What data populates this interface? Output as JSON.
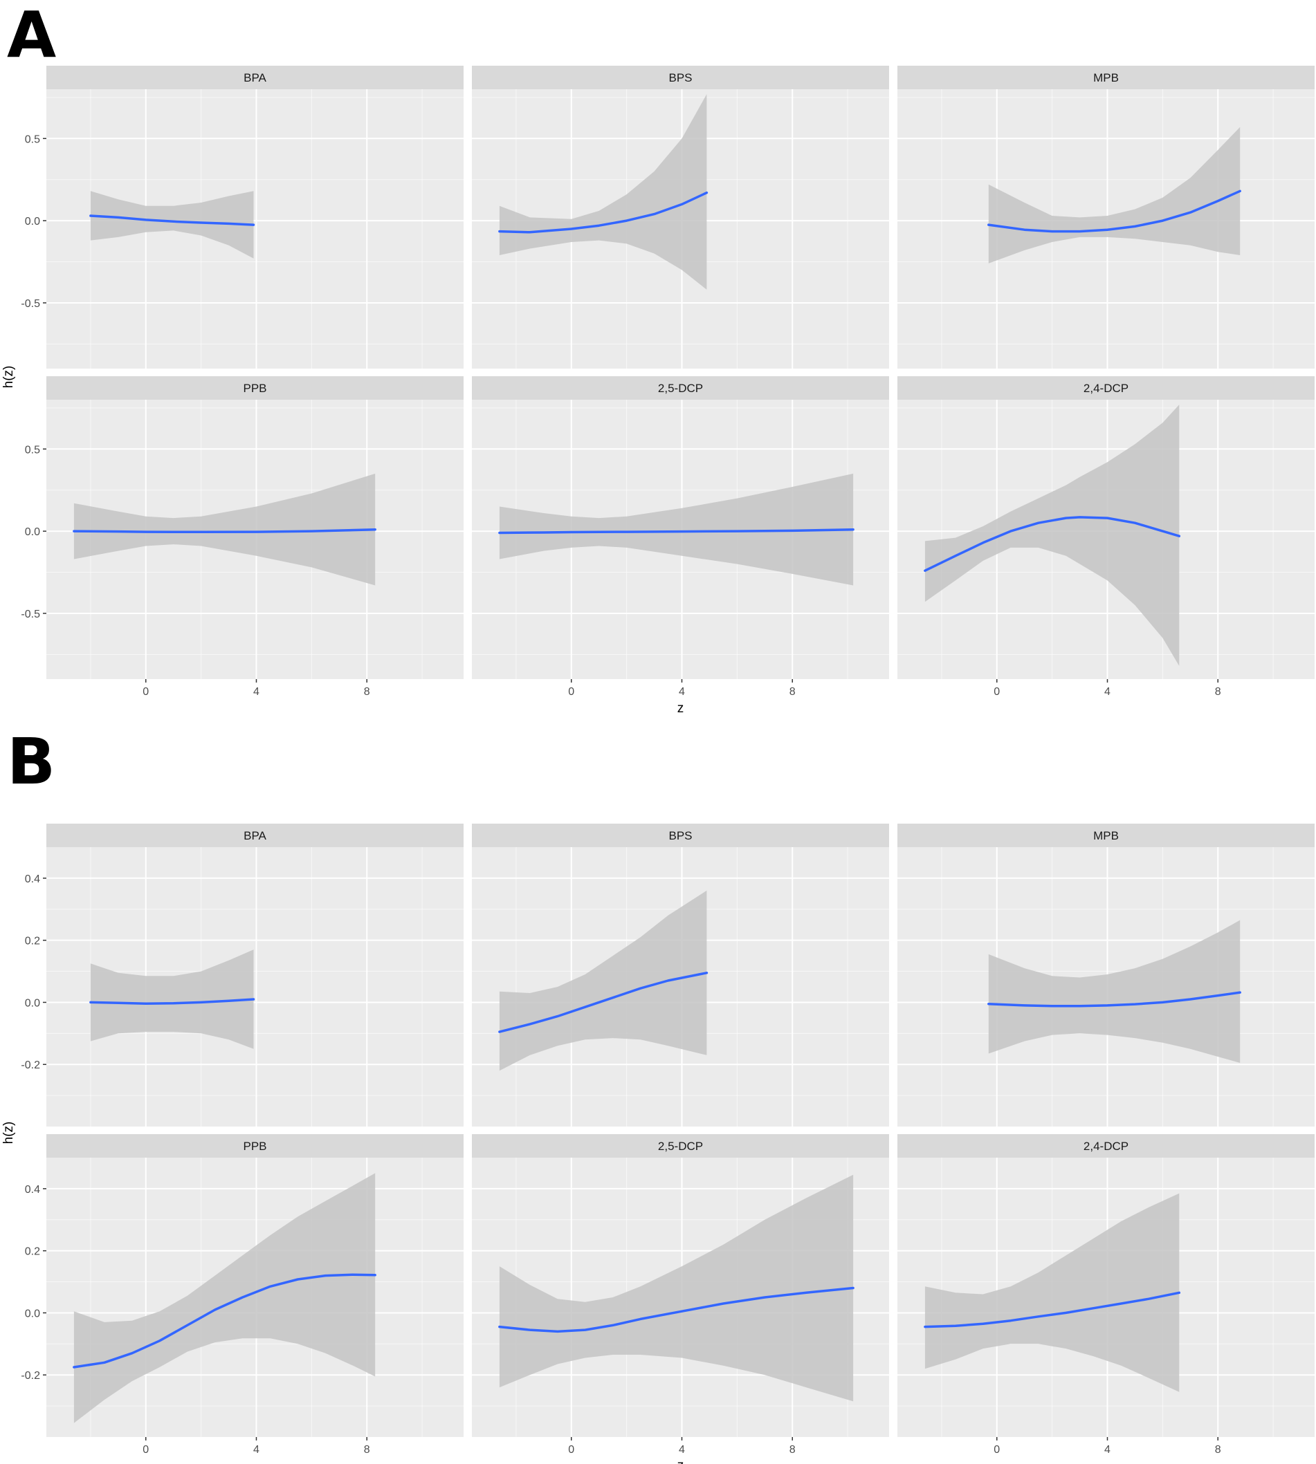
{
  "figures": [
    {
      "label": "A",
      "xlabel": "z",
      "ylabel": "h(z)",
      "yticks": [
        {
          "value": -0.5,
          "label": "-0.5"
        },
        {
          "value": 0.0,
          "label": "0.0"
        },
        {
          "value": 0.5,
          "label": "0.5"
        }
      ]
    },
    {
      "label": "B",
      "xlabel": "z",
      "ylabel": "h(z)",
      "yticks": [
        {
          "value": -0.2,
          "label": "-0.2"
        },
        {
          "value": 0.0,
          "label": "0.0"
        },
        {
          "value": 0.2,
          "label": "0.2"
        },
        {
          "value": 0.4,
          "label": "0.4"
        }
      ]
    }
  ],
  "xticks": [
    {
      "value": 0,
      "label": "0"
    },
    {
      "value": 4,
      "label": "4"
    },
    {
      "value": 8,
      "label": "8"
    }
  ],
  "colors": {
    "panel_bg": "#ebebeb",
    "strip_bg": "#d9d9d9",
    "grid": "#ffffff",
    "ribbon": "#c4c4c4",
    "line": "#3366ff",
    "text": "#4d4d4d"
  },
  "chart_data": [
    {
      "type": "line",
      "figure": "A",
      "xlabel": "z",
      "ylabel": "h(z)",
      "xlim": [
        -3.6,
        11.5
      ],
      "ylim": [
        -0.9,
        0.8
      ],
      "facets": [
        {
          "name": "BPA",
          "x": [
            -2,
            -1,
            0,
            1,
            2,
            3,
            3.9
          ],
          "y": [
            0.03,
            0.02,
            0.005,
            -0.005,
            -0.012,
            -0.018,
            -0.025
          ],
          "lower": [
            -0.12,
            -0.1,
            -0.07,
            -0.06,
            -0.09,
            -0.15,
            -0.23
          ],
          "upper": [
            0.18,
            0.13,
            0.09,
            0.09,
            0.11,
            0.15,
            0.18
          ]
        },
        {
          "name": "BPS",
          "x": [
            -2.6,
            -1.5,
            0,
            1,
            2,
            3,
            4,
            4.9
          ],
          "y": [
            -0.065,
            -0.07,
            -0.05,
            -0.03,
            0.0,
            0.04,
            0.1,
            0.17
          ],
          "lower": [
            -0.21,
            -0.17,
            -0.13,
            -0.12,
            -0.14,
            -0.2,
            -0.3,
            -0.42
          ],
          "upper": [
            0.09,
            0.02,
            0.01,
            0.06,
            0.16,
            0.3,
            0.5,
            0.77
          ]
        },
        {
          "name": "MPB",
          "x": [
            -0.3,
            1,
            2,
            3,
            4,
            5,
            6,
            7,
            8,
            8.8
          ],
          "y": [
            -0.025,
            -0.055,
            -0.065,
            -0.065,
            -0.055,
            -0.035,
            0.0,
            0.05,
            0.12,
            0.18
          ],
          "lower": [
            -0.26,
            -0.18,
            -0.13,
            -0.1,
            -0.1,
            -0.11,
            -0.13,
            -0.15,
            -0.19,
            -0.21
          ],
          "upper": [
            0.22,
            0.11,
            0.03,
            0.02,
            0.03,
            0.07,
            0.14,
            0.26,
            0.43,
            0.57
          ]
        },
        {
          "name": "PPB",
          "x": [
            -2.6,
            -1,
            0,
            1,
            2,
            4,
            6,
            8.3
          ],
          "y": [
            0.0,
            -0.002,
            -0.004,
            -0.005,
            -0.005,
            -0.004,
            0.0,
            0.01
          ],
          "lower": [
            -0.17,
            -0.12,
            -0.09,
            -0.08,
            -0.09,
            -0.15,
            -0.22,
            -0.33
          ],
          "upper": [
            0.17,
            0.12,
            0.09,
            0.08,
            0.09,
            0.15,
            0.23,
            0.35
          ]
        },
        {
          "name": "2,5-DCP",
          "x": [
            -2.6,
            -1,
            0,
            1,
            2,
            4,
            6,
            8,
            10.2
          ],
          "y": [
            -0.01,
            -0.008,
            -0.006,
            -0.005,
            -0.004,
            -0.002,
            0.0,
            0.003,
            0.01
          ],
          "lower": [
            -0.17,
            -0.12,
            -0.1,
            -0.09,
            -0.1,
            -0.15,
            -0.2,
            -0.26,
            -0.33
          ],
          "upper": [
            0.15,
            0.11,
            0.09,
            0.08,
            0.09,
            0.14,
            0.2,
            0.27,
            0.35
          ]
        },
        {
          "name": "2,4-DCP",
          "x": [
            -2.6,
            -1.5,
            -0.5,
            0.5,
            1.5,
            2.5,
            3,
            4,
            5,
            6,
            6.6
          ],
          "y": [
            -0.24,
            -0.15,
            -0.07,
            0.0,
            0.05,
            0.08,
            0.085,
            0.08,
            0.05,
            0.0,
            -0.03
          ],
          "lower": [
            -0.43,
            -0.3,
            -0.18,
            -0.1,
            -0.1,
            -0.15,
            -0.2,
            -0.3,
            -0.45,
            -0.65,
            -0.82
          ],
          "upper": [
            -0.06,
            -0.04,
            0.03,
            0.12,
            0.2,
            0.28,
            0.33,
            0.42,
            0.53,
            0.66,
            0.77
          ]
        }
      ]
    },
    {
      "type": "line",
      "figure": "B",
      "xlabel": "z",
      "ylabel": "h(z)",
      "xlim": [
        -3.6,
        11.5
      ],
      "ylim": [
        -0.4,
        0.5
      ],
      "facets": [
        {
          "name": "BPA",
          "x": [
            -2,
            -1,
            0,
            1,
            2,
            3,
            3.9
          ],
          "y": [
            0.0,
            -0.002,
            -0.004,
            -0.003,
            0.0,
            0.005,
            0.01
          ],
          "lower": [
            -0.125,
            -0.1,
            -0.095,
            -0.095,
            -0.1,
            -0.12,
            -0.15
          ],
          "upper": [
            0.125,
            0.095,
            0.085,
            0.085,
            0.1,
            0.135,
            0.17
          ]
        },
        {
          "name": "BPS",
          "x": [
            -2.6,
            -1.5,
            -0.5,
            0.5,
            1.5,
            2.5,
            3.5,
            4.9
          ],
          "y": [
            -0.095,
            -0.07,
            -0.045,
            -0.015,
            0.015,
            0.045,
            0.07,
            0.095
          ],
          "lower": [
            -0.22,
            -0.17,
            -0.14,
            -0.12,
            -0.115,
            -0.12,
            -0.14,
            -0.17
          ],
          "upper": [
            0.035,
            0.03,
            0.05,
            0.09,
            0.15,
            0.21,
            0.28,
            0.36
          ]
        },
        {
          "name": "MPB",
          "x": [
            -0.3,
            1,
            2,
            3,
            4,
            5,
            6,
            7,
            8,
            8.8
          ],
          "y": [
            -0.005,
            -0.01,
            -0.012,
            -0.012,
            -0.01,
            -0.006,
            0.0,
            0.01,
            0.022,
            0.032
          ],
          "lower": [
            -0.165,
            -0.125,
            -0.105,
            -0.1,
            -0.105,
            -0.115,
            -0.13,
            -0.15,
            -0.175,
            -0.195
          ],
          "upper": [
            0.155,
            0.11,
            0.085,
            0.08,
            0.09,
            0.11,
            0.14,
            0.18,
            0.225,
            0.265
          ]
        },
        {
          "name": "PPB",
          "x": [
            -2.6,
            -1.5,
            -0.5,
            0.5,
            1.5,
            2.5,
            3.5,
            4.5,
            5.5,
            6.5,
            7.5,
            8.3
          ],
          "y": [
            -0.175,
            -0.16,
            -0.13,
            -0.09,
            -0.04,
            0.01,
            0.05,
            0.085,
            0.108,
            0.12,
            0.123,
            0.122
          ],
          "lower": [
            -0.355,
            -0.28,
            -0.22,
            -0.175,
            -0.125,
            -0.095,
            -0.082,
            -0.082,
            -0.1,
            -0.13,
            -0.17,
            -0.205
          ],
          "upper": [
            0.005,
            -0.03,
            -0.025,
            0.005,
            0.055,
            0.12,
            0.185,
            0.25,
            0.31,
            0.36,
            0.41,
            0.45
          ]
        },
        {
          "name": "2,5-DCP",
          "x": [
            -2.6,
            -1.5,
            -0.5,
            0.5,
            1.5,
            2.5,
            4,
            5.5,
            7,
            8.5,
            10.2
          ],
          "y": [
            -0.045,
            -0.055,
            -0.06,
            -0.055,
            -0.04,
            -0.02,
            0.005,
            0.03,
            0.05,
            0.065,
            0.08
          ],
          "lower": [
            -0.24,
            -0.2,
            -0.165,
            -0.145,
            -0.135,
            -0.135,
            -0.145,
            -0.17,
            -0.2,
            -0.24,
            -0.285
          ],
          "upper": [
            0.15,
            0.09,
            0.045,
            0.035,
            0.05,
            0.085,
            0.15,
            0.22,
            0.3,
            0.37,
            0.445
          ]
        },
        {
          "name": "2,4-DCP",
          "x": [
            -2.6,
            -1.5,
            -0.5,
            0.5,
            1.5,
            2.5,
            3.5,
            4.5,
            5.5,
            6.6
          ],
          "y": [
            -0.045,
            -0.042,
            -0.035,
            -0.025,
            -0.012,
            0.0,
            0.015,
            0.03,
            0.045,
            0.065
          ],
          "lower": [
            -0.18,
            -0.15,
            -0.115,
            -0.1,
            -0.1,
            -0.115,
            -0.14,
            -0.17,
            -0.21,
            -0.255
          ],
          "upper": [
            0.085,
            0.065,
            0.06,
            0.085,
            0.13,
            0.185,
            0.24,
            0.295,
            0.34,
            0.385
          ]
        }
      ]
    }
  ]
}
